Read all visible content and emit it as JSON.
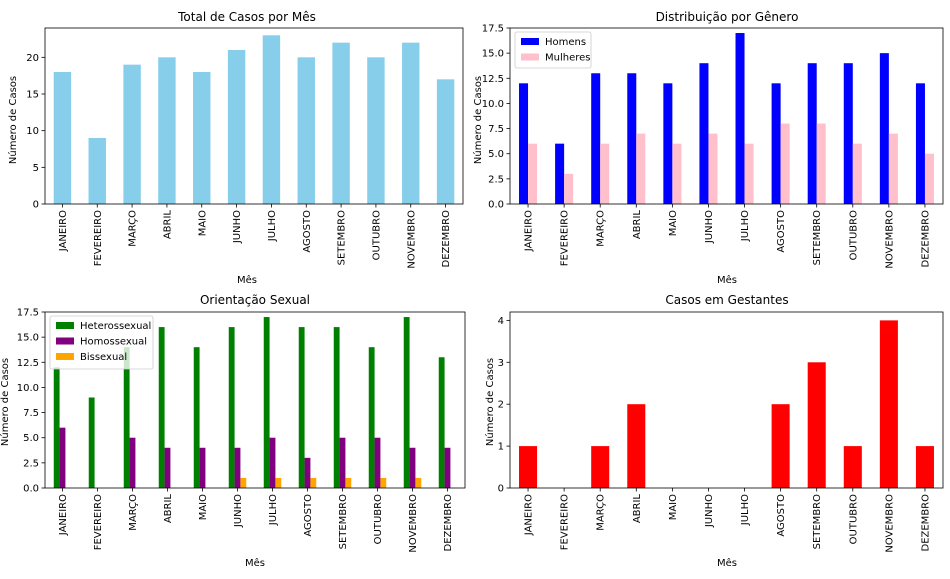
{
  "months": [
    "JANEIRO",
    "FEVEREIRO",
    "MARÇO",
    "ABRIL",
    "MAIO",
    "JUNHO",
    "JULHO",
    "AGOSTO",
    "SETEMBRO",
    "OUTUBRO",
    "NOVEMBRO",
    "DEZEMBRO"
  ],
  "chart_data": [
    {
      "type": "bar",
      "title": "Total de Casos por Mês",
      "xlabel": "Mês",
      "ylabel": "Número de Casos",
      "ylim": [
        0,
        24
      ],
      "yticks": [
        "0",
        "5",
        "10",
        "15",
        "20"
      ],
      "series": [
        {
          "values": [
            18,
            9,
            19,
            20,
            18,
            21,
            23,
            20,
            22,
            20,
            22,
            17
          ],
          "color": "#87ceeb"
        }
      ],
      "grid": false,
      "legend": "none"
    },
    {
      "type": "bar",
      "title": "Distribuição por Gênero",
      "xlabel": "Mês",
      "ylabel": "Número de Casos",
      "ylim": [
        0,
        17.5
      ],
      "yticks": [
        "0.0",
        "2.5",
        "5.0",
        "7.5",
        "10.0",
        "12.5",
        "15.0",
        "17.5"
      ],
      "series": [
        {
          "name": "Homens",
          "values": [
            12,
            6,
            13,
            13,
            12,
            14,
            17,
            12,
            14,
            14,
            15,
            12
          ],
          "color": "#0000ff"
        },
        {
          "name": "Mulheres",
          "values": [
            6,
            3,
            6,
            7,
            6,
            7,
            6,
            8,
            8,
            6,
            7,
            5
          ],
          "color": "#ffc0cb"
        }
      ],
      "grid": false,
      "legend": "top-left"
    },
    {
      "type": "bar",
      "title": "Orientação Sexual",
      "xlabel": "Mês",
      "ylabel": "Número de Casos",
      "ylim": [
        0,
        17.5
      ],
      "yticks": [
        "0.0",
        "2.5",
        "5.0",
        "7.5",
        "10.0",
        "12.5",
        "15.0",
        "17.5"
      ],
      "series": [
        {
          "name": "Heterossexual",
          "values": [
            12,
            9,
            14,
            16,
            14,
            16,
            17,
            16,
            16,
            14,
            17,
            13
          ],
          "color": "#008000"
        },
        {
          "name": "Homossexual",
          "values": [
            6,
            0,
            5,
            4,
            4,
            4,
            5,
            3,
            5,
            5,
            4,
            4
          ],
          "color": "#800080"
        },
        {
          "name": "Bissexual",
          "values": [
            0,
            0,
            0,
            0,
            0,
            1,
            1,
            1,
            1,
            1,
            1,
            0
          ],
          "color": "#ffa500"
        }
      ],
      "grid": false,
      "legend": "top-left"
    },
    {
      "type": "bar",
      "title": "Casos em Gestantes",
      "xlabel": "Mês",
      "ylabel": "Número de Casos",
      "ylim": [
        0,
        4.2
      ],
      "yticks": [
        "0",
        "1",
        "2",
        "3",
        "4"
      ],
      "series": [
        {
          "values": [
            1,
            0,
            1,
            2,
            0,
            0,
            0,
            2,
            3,
            1,
            4,
            1
          ],
          "color": "#ff0000"
        }
      ],
      "grid": false,
      "legend": "none"
    }
  ]
}
